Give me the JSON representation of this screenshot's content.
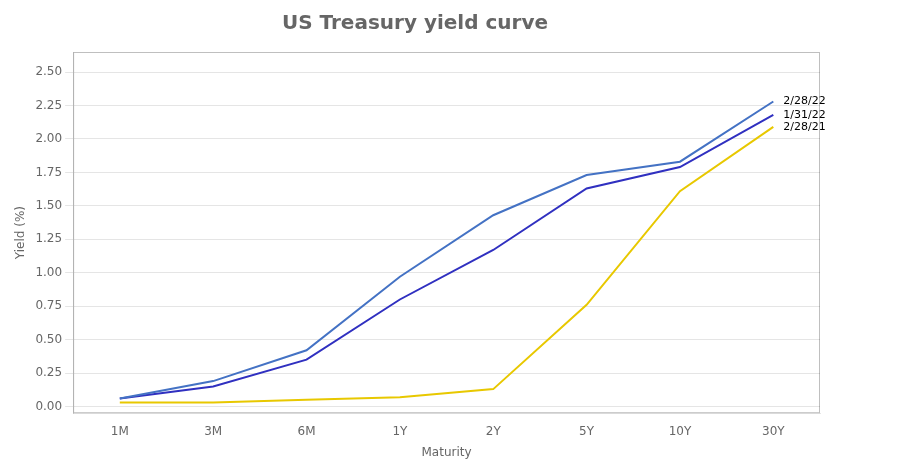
{
  "chart_data": {
    "type": "line",
    "title": "US Treasury yield curve",
    "xlabel": "Maturity",
    "ylabel": "Yield (%)",
    "categories": [
      "1M",
      "3M",
      "6M",
      "1Y",
      "2Y",
      "5Y",
      "10Y",
      "30Y"
    ],
    "series": [
      {
        "name": "2/28/22",
        "color": "#4472c4",
        "values": [
          0.06,
          0.19,
          0.42,
          0.97,
          1.43,
          1.73,
          1.83,
          2.28
        ]
      },
      {
        "name": "1/31/22",
        "color": "#3030c0",
        "values": [
          0.06,
          0.15,
          0.35,
          0.8,
          1.17,
          1.63,
          1.79,
          2.18
        ]
      },
      {
        "name": "2/28/21",
        "color": "#e8c800",
        "values": [
          0.03,
          0.03,
          0.05,
          0.07,
          0.13,
          0.76,
          1.61,
          2.09
        ]
      }
    ],
    "ylim": [
      -0.05,
      2.65
    ],
    "yticks": [
      {
        "value": 0,
        "label": "0.00"
      },
      {
        "value": 0.25,
        "label": "0.25"
      },
      {
        "value": 0.5,
        "label": "0.50"
      },
      {
        "value": 0.75,
        "label": "0.75"
      },
      {
        "value": 1,
        "label": "1.00"
      },
      {
        "value": 1.25,
        "label": "1.25"
      },
      {
        "value": 1.5,
        "label": "1.50"
      },
      {
        "value": 1.75,
        "label": "1.75"
      },
      {
        "value": 2,
        "label": "2.00"
      },
      {
        "value": 2.25,
        "label": "2.25"
      },
      {
        "value": 2.5,
        "label": "2.50"
      }
    ],
    "grid": "y",
    "annotations": [
      {
        "text": "2/28/22",
        "x": "30Y",
        "y": 2.28
      },
      {
        "text": "1/31/22",
        "x": "30Y",
        "y": 2.18
      },
      {
        "text": "2/28/21",
        "x": "30Y",
        "y": 2.09
      }
    ]
  }
}
